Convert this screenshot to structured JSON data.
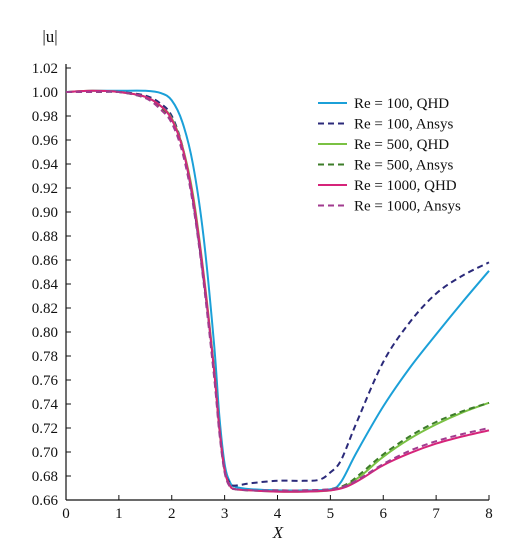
{
  "chart_data": {
    "type": "line",
    "ylabel": "|u|",
    "xlabel": "X",
    "xlim": [
      0,
      8
    ],
    "ylim": [
      0.66,
      1.02
    ],
    "x_ticks": [
      "0",
      "1",
      "2",
      "3",
      "4",
      "5",
      "6",
      "7",
      "8"
    ],
    "y_ticks": [
      "0.66",
      "0.68",
      "0.70",
      "0.72",
      "0.74",
      "0.76",
      "0.78",
      "0.80",
      "0.82",
      "0.84",
      "0.86",
      "0.88",
      "0.90",
      "0.92",
      "0.94",
      "0.96",
      "0.98",
      "1.00",
      "1.02"
    ],
    "grid": false,
    "legend_position": "top-right",
    "series": [
      {
        "name": "Re = 100, QHD",
        "color": "#1ba0d8",
        "dash": "solid",
        "x": [
          0,
          0.5,
          1.0,
          1.5,
          1.8,
          2.0,
          2.2,
          2.4,
          2.6,
          2.8,
          2.9,
          3.0,
          3.1,
          3.2,
          3.5,
          4.0,
          4.5,
          5.0,
          5.2,
          5.5,
          6.0,
          6.5,
          7.0,
          7.5,
          8.0
        ],
        "y": [
          1.0,
          1.001,
          1.001,
          1.001,
          0.999,
          0.993,
          0.975,
          0.94,
          0.88,
          0.79,
          0.73,
          0.69,
          0.675,
          0.671,
          0.669,
          0.668,
          0.668,
          0.669,
          0.675,
          0.7,
          0.738,
          0.77,
          0.798,
          0.825,
          0.851
        ]
      },
      {
        "name": "Re = 100, Ansys",
        "color": "#2b2a7a",
        "dash": "dashed",
        "x": [
          0,
          0.5,
          1.0,
          1.5,
          1.8,
          2.0,
          2.2,
          2.4,
          2.6,
          2.8,
          2.9,
          3.0,
          3.1,
          3.2,
          3.5,
          4.0,
          4.5,
          4.8,
          5.0,
          5.2,
          5.5,
          6.0,
          6.5,
          7.0,
          7.5,
          8.0
        ],
        "y": [
          1.0,
          1.0,
          1.0,
          0.997,
          0.99,
          0.98,
          0.955,
          0.91,
          0.845,
          0.77,
          0.72,
          0.685,
          0.674,
          0.672,
          0.674,
          0.676,
          0.676,
          0.677,
          0.683,
          0.693,
          0.725,
          0.775,
          0.808,
          0.832,
          0.847,
          0.858
        ]
      },
      {
        "name": "Re = 500, QHD",
        "color": "#7ac143",
        "dash": "solid",
        "x": [
          0,
          0.5,
          1.0,
          1.5,
          1.8,
          2.0,
          2.2,
          2.4,
          2.6,
          2.8,
          2.9,
          3.0,
          3.1,
          3.2,
          3.5,
          4.0,
          4.5,
          5.0,
          5.3,
          5.6,
          6.0,
          6.5,
          7.0,
          7.5,
          8.0
        ],
        "y": [
          1.0,
          1.001,
          1.0,
          0.996,
          0.988,
          0.978,
          0.955,
          0.915,
          0.85,
          0.77,
          0.72,
          0.685,
          0.672,
          0.669,
          0.668,
          0.667,
          0.667,
          0.668,
          0.672,
          0.681,
          0.696,
          0.711,
          0.723,
          0.733,
          0.741
        ]
      },
      {
        "name": "Re = 500, Ansys",
        "color": "#3d7d2a",
        "dash": "dashed",
        "x": [
          0,
          0.5,
          1.0,
          1.5,
          1.8,
          2.0,
          2.2,
          2.4,
          2.6,
          2.8,
          2.9,
          3.0,
          3.1,
          3.2,
          3.5,
          4.0,
          4.5,
          5.0,
          5.3,
          5.6,
          6.0,
          6.5,
          7.0,
          7.5,
          8.0
        ],
        "y": [
          1.0,
          1.0,
          1.0,
          0.995,
          0.986,
          0.975,
          0.952,
          0.91,
          0.845,
          0.765,
          0.718,
          0.684,
          0.672,
          0.669,
          0.668,
          0.668,
          0.668,
          0.669,
          0.673,
          0.683,
          0.698,
          0.713,
          0.725,
          0.734,
          0.741
        ]
      },
      {
        "name": "Re = 1000, QHD",
        "color": "#d6247a",
        "dash": "solid",
        "x": [
          0,
          0.5,
          1.0,
          1.5,
          1.8,
          2.0,
          2.2,
          2.4,
          2.6,
          2.8,
          2.9,
          3.0,
          3.1,
          3.2,
          3.5,
          4.0,
          4.5,
          5.0,
          5.3,
          5.6,
          6.0,
          6.5,
          7.0,
          7.5,
          8.0
        ],
        "y": [
          1.0,
          1.001,
          1.0,
          0.996,
          0.988,
          0.977,
          0.954,
          0.912,
          0.848,
          0.768,
          0.72,
          0.685,
          0.672,
          0.669,
          0.668,
          0.667,
          0.667,
          0.668,
          0.671,
          0.678,
          0.689,
          0.699,
          0.707,
          0.713,
          0.718
        ]
      },
      {
        "name": "Re = 1000, Ansys",
        "color": "#a23b8f",
        "dash": "dashed",
        "x": [
          0,
          0.5,
          1.0,
          1.5,
          1.8,
          2.0,
          2.2,
          2.4,
          2.6,
          2.8,
          2.9,
          3.0,
          3.1,
          3.2,
          3.5,
          4.0,
          4.5,
          5.0,
          5.3,
          5.6,
          6.0,
          6.5,
          7.0,
          7.5,
          8.0
        ],
        "y": [
          1.0,
          1.0,
          1.0,
          0.995,
          0.985,
          0.974,
          0.95,
          0.907,
          0.842,
          0.763,
          0.716,
          0.683,
          0.671,
          0.669,
          0.668,
          0.668,
          0.668,
          0.669,
          0.672,
          0.679,
          0.69,
          0.701,
          0.709,
          0.715,
          0.72
        ]
      }
    ]
  }
}
